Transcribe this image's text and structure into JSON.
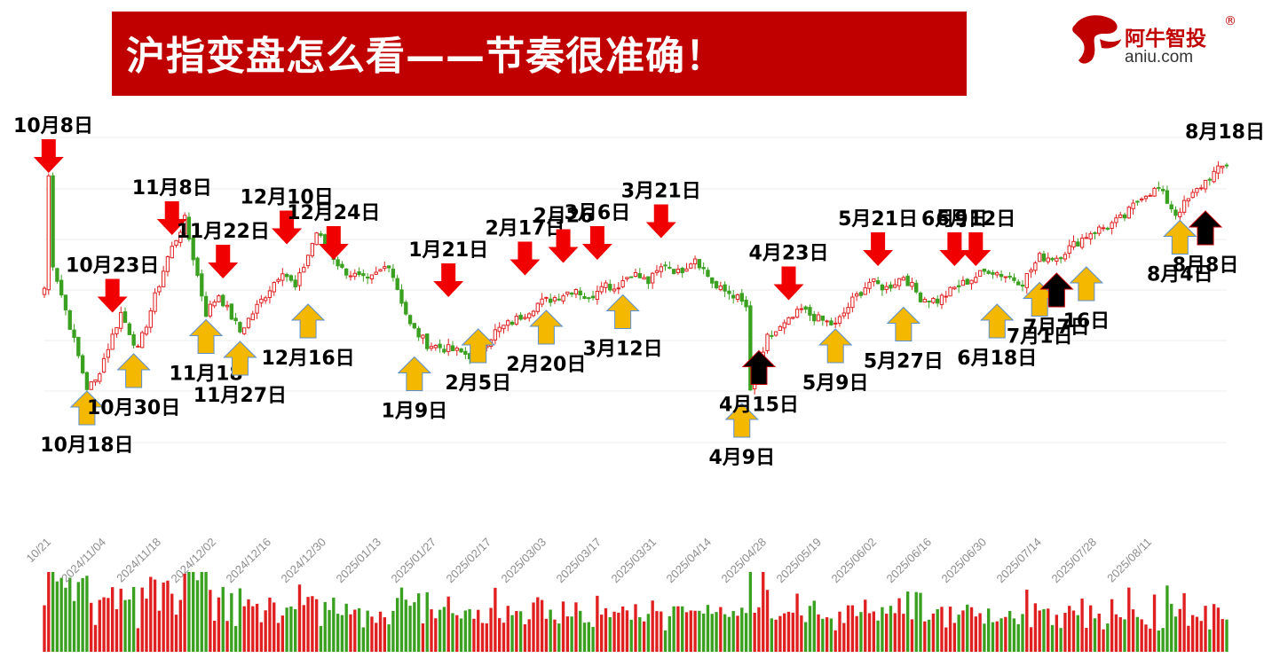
{
  "header": {
    "title": "沪指变盘怎么看——节奏很准确！",
    "logo_cn": "阿牛智投",
    "logo_en": "aniu.com",
    "logo_reg": "®"
  },
  "colors": {
    "banner": "#c00000",
    "up_candle": "#e02020",
    "down_candle": "#3aa020",
    "sell_arrow": "#f00000",
    "buy_arrow": "#f5b800",
    "black_arrow": "#000000"
  },
  "chart_data": {
    "type": "candlestick",
    "title": "",
    "x_tick_labels": [
      "10/21",
      "2024/11/04",
      "2024/11/18",
      "2024/12/02",
      "2024/12/16",
      "2024/12/30",
      "2025/01/13",
      "2025/01/27",
      "2025/02/17",
      "2025/03/03",
      "2025/03/17",
      "2025/03/31",
      "2025/04/14",
      "2025/04/28",
      "2025/05/19",
      "2025/06/02",
      "2025/06/16",
      "2025/06/30",
      "2025/07/14",
      "2025/07/28",
      "2025/08/11"
    ],
    "grid": true,
    "price_anchors": [
      {
        "bar": 0,
        "close": 0.5
      },
      {
        "bar": 1,
        "close": 0.86
      },
      {
        "bar": 2,
        "close": 0.58
      },
      {
        "bar": 10,
        "close": 0.18
      },
      {
        "bar": 12,
        "close": 0.2
      },
      {
        "bar": 18,
        "close": 0.42
      },
      {
        "bar": 22,
        "close": 0.3
      },
      {
        "bar": 29,
        "close": 0.6
      },
      {
        "bar": 33,
        "close": 0.72
      },
      {
        "bar": 38,
        "close": 0.42
      },
      {
        "bar": 41,
        "close": 0.48
      },
      {
        "bar": 46,
        "close": 0.36
      },
      {
        "bar": 50,
        "close": 0.44
      },
      {
        "bar": 56,
        "close": 0.56
      },
      {
        "bar": 59,
        "close": 0.5
      },
      {
        "bar": 64,
        "close": 0.68
      },
      {
        "bar": 70,
        "close": 0.56
      },
      {
        "bar": 76,
        "close": 0.52
      },
      {
        "bar": 81,
        "close": 0.58
      },
      {
        "bar": 86,
        "close": 0.38
      },
      {
        "bar": 90,
        "close": 0.32
      },
      {
        "bar": 96,
        "close": 0.3
      },
      {
        "bar": 101,
        "close": 0.28
      },
      {
        "bar": 106,
        "close": 0.36
      },
      {
        "bar": 111,
        "close": 0.4
      },
      {
        "bar": 116,
        "close": 0.45
      },
      {
        "bar": 120,
        "close": 0.47
      },
      {
        "bar": 125,
        "close": 0.5
      },
      {
        "bar": 128,
        "close": 0.46
      },
      {
        "bar": 131,
        "close": 0.52
      },
      {
        "bar": 134,
        "close": 0.5
      },
      {
        "bar": 138,
        "close": 0.55
      },
      {
        "bar": 142,
        "close": 0.52
      },
      {
        "bar": 146,
        "close": 0.58
      },
      {
        "bar": 149,
        "close": 0.55
      },
      {
        "bar": 153,
        "close": 0.6
      },
      {
        "bar": 158,
        "close": 0.5
      },
      {
        "bar": 162,
        "close": 0.48
      },
      {
        "bar": 165,
        "close": 0.44
      },
      {
        "bar": 166,
        "close": 0.16
      },
      {
        "bar": 168,
        "close": 0.22
      },
      {
        "bar": 170,
        "close": 0.34
      },
      {
        "bar": 174,
        "close": 0.38
      },
      {
        "bar": 178,
        "close": 0.43
      },
      {
        "bar": 182,
        "close": 0.4
      },
      {
        "bar": 186,
        "close": 0.38
      },
      {
        "bar": 190,
        "close": 0.46
      },
      {
        "bar": 194,
        "close": 0.52
      },
      {
        "bar": 198,
        "close": 0.5
      },
      {
        "bar": 202,
        "close": 0.54
      },
      {
        "bar": 206,
        "close": 0.47
      },
      {
        "bar": 210,
        "close": 0.46
      },
      {
        "bar": 214,
        "close": 0.5
      },
      {
        "bar": 218,
        "close": 0.53
      },
      {
        "bar": 222,
        "close": 0.56
      },
      {
        "bar": 226,
        "close": 0.54
      },
      {
        "bar": 230,
        "close": 0.52
      },
      {
        "bar": 234,
        "close": 0.6
      },
      {
        "bar": 238,
        "close": 0.6
      },
      {
        "bar": 242,
        "close": 0.64
      },
      {
        "bar": 246,
        "close": 0.68
      },
      {
        "bar": 250,
        "close": 0.7
      },
      {
        "bar": 254,
        "close": 0.73
      },
      {
        "bar": 258,
        "close": 0.8
      },
      {
        "bar": 262,
        "close": 0.82
      },
      {
        "bar": 266,
        "close": 0.74
      },
      {
        "bar": 270,
        "close": 0.8
      },
      {
        "bar": 274,
        "close": 0.86
      },
      {
        "bar": 278,
        "close": 0.9
      }
    ],
    "total_bars": 279,
    "annotations": [
      {
        "text": "10月8日",
        "type": "sell",
        "bar": 1,
        "price": 0.86
      },
      {
        "text": "10月18日",
        "type": "buy",
        "bar": 10,
        "price": 0.18
      },
      {
        "text": "10月23日",
        "type": "sell",
        "bar": 16,
        "price": 0.41
      },
      {
        "text": "10月30日",
        "type": "buy",
        "bar": 21,
        "price": 0.3
      },
      {
        "text": "11月8日",
        "type": "sell",
        "bar": 30,
        "price": 0.66
      },
      {
        "text": "11月18",
        "type": "buy",
        "bar": 38,
        "price": 0.41
      },
      {
        "text": "11月22日",
        "type": "sell",
        "bar": 42,
        "price": 0.52
      },
      {
        "text": "11月27日",
        "type": "buy",
        "bar": 46,
        "price": 0.34
      },
      {
        "text": "12月10日",
        "type": "sell",
        "bar": 57,
        "price": 0.63
      },
      {
        "text": "12月16日",
        "type": "buy",
        "bar": 62,
        "price": 0.46
      },
      {
        "text": "12月24日",
        "type": "sell",
        "bar": 68,
        "price": 0.58
      },
      {
        "text": "1月9日",
        "type": "buy",
        "bar": 87,
        "price": 0.29
      },
      {
        "text": "1月21日",
        "type": "sell",
        "bar": 95,
        "price": 0.46
      },
      {
        "text": "2月5日",
        "type": "buy",
        "bar": 102,
        "price": 0.38
      },
      {
        "text": "2月17日",
        "type": "sell",
        "bar": 113,
        "price": 0.53
      },
      {
        "text": "2月20日",
        "type": "buy",
        "bar": 118,
        "price": 0.44
      },
      {
        "text": "2月26",
        "type": "sell",
        "bar": 122,
        "price": 0.57
      },
      {
        "text": "3月6日",
        "type": "sell",
        "bar": 130,
        "price": 0.58
      },
      {
        "text": "3月12日",
        "type": "buy",
        "bar": 136,
        "price": 0.49
      },
      {
        "text": "3月21日",
        "type": "sell",
        "bar": 145,
        "price": 0.65
      },
      {
        "text": "4月9日",
        "type": "buy",
        "bar": 164,
        "price": 0.14
      },
      {
        "text": "4月15日",
        "type": "black",
        "bar": 168,
        "price": 0.31
      },
      {
        "text": "4月23日",
        "type": "sell",
        "bar": 175,
        "price": 0.45
      },
      {
        "text": "5月9日",
        "type": "buy",
        "bar": 186,
        "price": 0.38
      },
      {
        "text": "5月21日",
        "type": "sell",
        "bar": 196,
        "price": 0.56
      },
      {
        "text": "5月27日",
        "type": "buy",
        "bar": 202,
        "price": 0.45
      },
      {
        "text": "6月9日",
        "type": "sell",
        "bar": 214,
        "price": 0.56
      },
      {
        "text": "6月12日",
        "type": "sell",
        "bar": 219,
        "price": 0.56
      },
      {
        "text": "6月18日",
        "type": "buy",
        "bar": 224,
        "price": 0.46
      },
      {
        "text": "7月1日",
        "type": "buy",
        "bar": 234,
        "price": 0.53
      },
      {
        "text": "7月7日",
        "type": "black",
        "bar": 238,
        "price": 0.56
      },
      {
        "text": "16日",
        "type": "buy",
        "bar": 245,
        "price": 0.58
      },
      {
        "text": "8月4日",
        "type": "buy",
        "bar": 267,
        "price": 0.73
      },
      {
        "text": "8月8日",
        "type": "black",
        "bar": 273,
        "price": 0.76
      },
      {
        "text": "8月18日",
        "type": "none",
        "bar": 278,
        "price": 0.92
      }
    ]
  }
}
